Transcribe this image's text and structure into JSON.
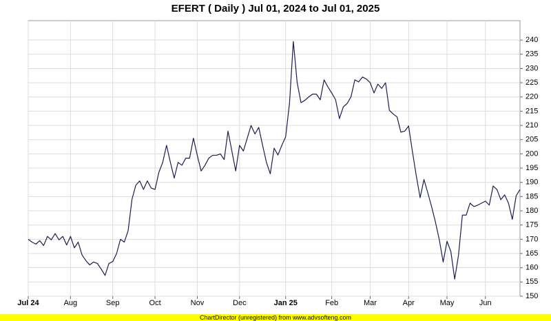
{
  "chart_data": {
    "type": "line",
    "title": "EFERT ( Daily ) Jul 01, 2024 to Jul 01, 2025",
    "footer": "ChartDirector (unregistered) from www.advsofteng.com",
    "categories": [
      "Jul 24",
      null,
      null,
      null,
      null,
      null,
      null,
      null,
      null,
      null,
      null,
      "Aug",
      null,
      null,
      null,
      null,
      null,
      null,
      null,
      null,
      null,
      null,
      "Sep",
      null,
      null,
      null,
      null,
      null,
      null,
      null,
      null,
      null,
      null,
      "Oct",
      null,
      null,
      null,
      null,
      null,
      null,
      null,
      null,
      null,
      null,
      "Nov",
      null,
      null,
      null,
      null,
      null,
      null,
      null,
      null,
      null,
      null,
      "Dec",
      null,
      null,
      null,
      null,
      null,
      null,
      null,
      null,
      null,
      null,
      null,
      "Jan 25",
      null,
      null,
      null,
      null,
      null,
      null,
      null,
      null,
      null,
      null,
      null,
      "Feb",
      null,
      null,
      null,
      null,
      null,
      null,
      null,
      null,
      null,
      "Mar",
      null,
      null,
      null,
      null,
      null,
      null,
      null,
      null,
      null,
      "Apr",
      null,
      null,
      null,
      null,
      null,
      null,
      null,
      null,
      null,
      "May",
      null,
      null,
      null,
      null,
      null,
      null,
      null,
      null,
      null,
      "Jun",
      null,
      null,
      null,
      null,
      null,
      null,
      null,
      null,
      null
    ],
    "series": [
      {
        "name": "EFERT",
        "color": "#1c1c50",
        "values": [
          170,
          169,
          168.3,
          169.5,
          167.8,
          171,
          169.8,
          172,
          169.8,
          171,
          168,
          171,
          167,
          169,
          164.5,
          162.5,
          161,
          162,
          161.5,
          159.5,
          157.3,
          161.5,
          162.2,
          165,
          170,
          169,
          173,
          184,
          189,
          190.5,
          187.5,
          190.5,
          188,
          187.5,
          193.5,
          197,
          203,
          197,
          191.5,
          197,
          196,
          198.5,
          198.5,
          205.5,
          199.5,
          194,
          196,
          198.5,
          199.5,
          199.5,
          200,
          198,
          208,
          201,
          194,
          203,
          201,
          205.5,
          210,
          207,
          209.3,
          203,
          197,
          193,
          202,
          199.6,
          203,
          206,
          217.7,
          239.5,
          225,
          218,
          218.8,
          220,
          221,
          221,
          219,
          226,
          223.5,
          221.4,
          219,
          212.4,
          216.5,
          217.7,
          220,
          226,
          225.3,
          227,
          226.3,
          225,
          221.4,
          224.5,
          223,
          225,
          215.3,
          214,
          213,
          207.6,
          208,
          209.8,
          200.8,
          192.3,
          184.6,
          191,
          186.3,
          181.4,
          176,
          169.8,
          162,
          169.3,
          165.7,
          156,
          164.5,
          178.5,
          178.5,
          182.7,
          181.5,
          182,
          182.7,
          183.4,
          182,
          188.7,
          187.5,
          183.9,
          185.6,
          182.7,
          177,
          185.3,
          187.5
        ]
      }
    ],
    "ylim": [
      150,
      246.8
    ],
    "yticks": [
      150,
      155,
      160,
      165,
      170,
      175,
      180,
      185,
      190,
      195,
      200,
      205,
      210,
      215,
      220,
      225,
      230,
      235,
      240
    ],
    "grid": true
  }
}
